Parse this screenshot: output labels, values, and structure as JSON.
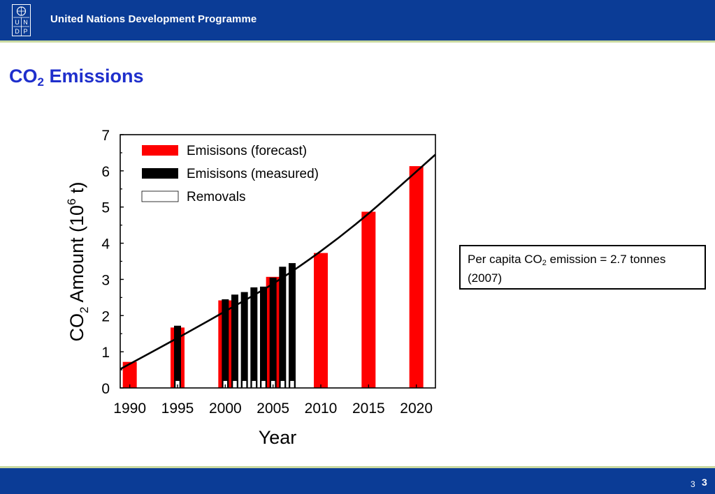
{
  "header": {
    "title": "United Nations Development Programme",
    "logo_letters": [
      "U",
      "N",
      "D",
      "P"
    ],
    "background": "#0b3c96"
  },
  "slide": {
    "title_main": "CO",
    "title_sub": "2",
    "title_rest": " Emissions",
    "title_color": "#1f2fcc"
  },
  "info_box": {
    "text_before": "Per capita CO",
    "text_sub": "2",
    "text_after": " emission = 2.7 tonnes (2007)"
  },
  "footer": {
    "page_small": "3",
    "page_number": "3"
  },
  "chart_data": {
    "type": "bar",
    "xlabel": "Year",
    "ylabel": {
      "main": "CO",
      "sub": "2",
      "mid": " Amount (10",
      "sup": "6",
      "end": " t)"
    },
    "ylim": [
      0,
      7
    ],
    "xlim": [
      1989,
      2022
    ],
    "xticks": [
      1990,
      1995,
      2000,
      2005,
      2010,
      2015,
      2020
    ],
    "yticks": [
      0,
      1,
      2,
      3,
      4,
      5,
      6,
      7
    ],
    "legend_position": "top-left",
    "series": [
      {
        "name": "Emisisons (forecast)",
        "color": "#ff0000",
        "x": [
          1990,
          1995,
          2000,
          2005,
          2010,
          2015,
          2020
        ],
        "values": [
          0.72,
          1.67,
          2.42,
          3.07,
          3.73,
          4.87,
          6.13
        ]
      },
      {
        "name": "Emisisons (measured)",
        "color": "#000000",
        "x": [
          1995,
          2000,
          2001,
          2002,
          2003,
          2004,
          2005,
          2006,
          2007
        ],
        "values": [
          1.72,
          2.45,
          2.58,
          2.65,
          2.78,
          2.8,
          3.05,
          3.35,
          3.45
        ]
      },
      {
        "name": "Removals",
        "color": "#ffffff",
        "x": [
          1995,
          2000,
          2001,
          2002,
          2003,
          2004,
          2005,
          2006,
          2007
        ],
        "values": [
          0.2,
          0.2,
          0.2,
          0.2,
          0.2,
          0.2,
          0.2,
          0.2,
          0.2
        ]
      }
    ],
    "trend_line": {
      "x": [
        1989,
        1995,
        2000,
        2005,
        2010,
        2015,
        2022
      ],
      "y": [
        0.52,
        1.38,
        2.12,
        2.88,
        3.78,
        4.82,
        6.45
      ]
    }
  }
}
